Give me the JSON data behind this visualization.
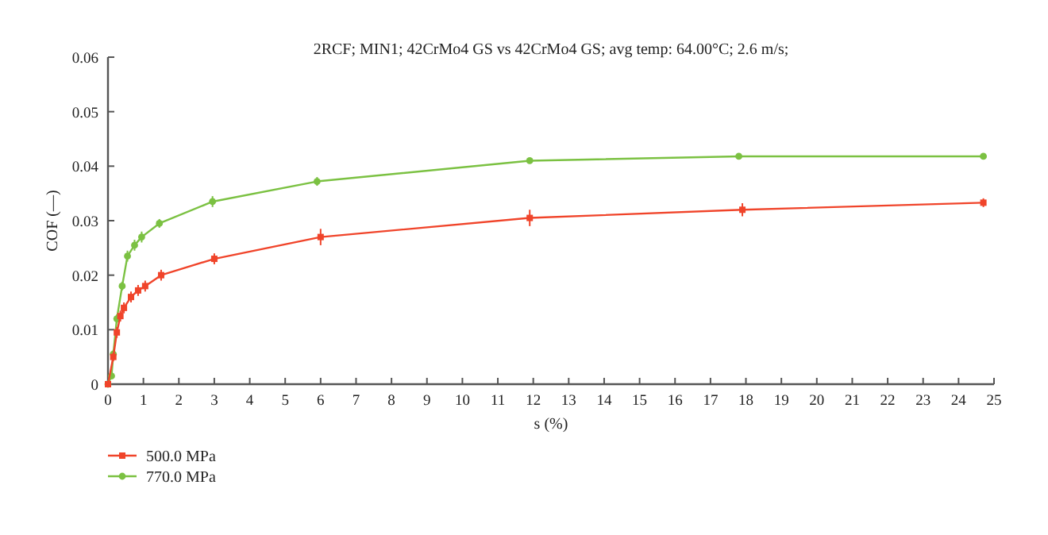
{
  "chart_data": {
    "type": "line",
    "title": "2RCF; MIN1; 42CrMo4 GS vs 42CrMo4 GS; avg temp: 64.00°C; 2.6 m/s;",
    "xlabel": "s (%)",
    "ylabel": "COF (—)",
    "xlim": [
      0,
      25
    ],
    "xticks": [
      0,
      1,
      2,
      3,
      4,
      5,
      6,
      7,
      8,
      9,
      10,
      11,
      12,
      13,
      14,
      15,
      16,
      17,
      18,
      19,
      20,
      21,
      22,
      23,
      24,
      25
    ],
    "ylim": [
      0,
      0.06
    ],
    "yticks": [
      0,
      0.01,
      0.02,
      0.03,
      0.04,
      0.05,
      0.06
    ],
    "grid": false,
    "legend": "bottom left",
    "series": [
      {
        "name": "500.0 MPa",
        "color": "#f0442a",
        "marker": "square",
        "x": [
          0,
          0.15,
          0.25,
          0.35,
          0.45,
          0.65,
          0.85,
          1.05,
          1.5,
          3,
          6,
          11.9,
          17.9,
          24.7
        ],
        "values": [
          0,
          0.005,
          0.0095,
          0.0125,
          0.014,
          0.016,
          0.0172,
          0.018,
          0.02,
          0.023,
          0.027,
          0.0305,
          0.032,
          0.0333
        ],
        "errors": [
          null,
          0.0008,
          0.001,
          0.001,
          0.001,
          0.001,
          0.001,
          0.001,
          0.001,
          0.001,
          0.0015,
          0.0015,
          0.0012,
          0.0008
        ]
      },
      {
        "name": "770.0 MPa",
        "color": "#7bc142",
        "marker": "circle",
        "x": [
          0,
          0.1,
          0.15,
          0.25,
          0.4,
          0.55,
          0.75,
          0.95,
          1.45,
          2.95,
          5.9,
          11.9,
          17.8,
          24.7
        ],
        "values": [
          0,
          0.0015,
          0.0055,
          0.012,
          0.018,
          0.0235,
          0.0255,
          0.027,
          0.0295,
          0.0335,
          0.0372,
          0.041,
          0.0418,
          0.0418
        ],
        "errors": [
          null,
          0.0005,
          0.0008,
          0.0008,
          0.0008,
          0.001,
          0.001,
          0.001,
          0.0008,
          0.001,
          0.0008,
          0.0004,
          0.0003,
          0.0003
        ]
      }
    ]
  }
}
